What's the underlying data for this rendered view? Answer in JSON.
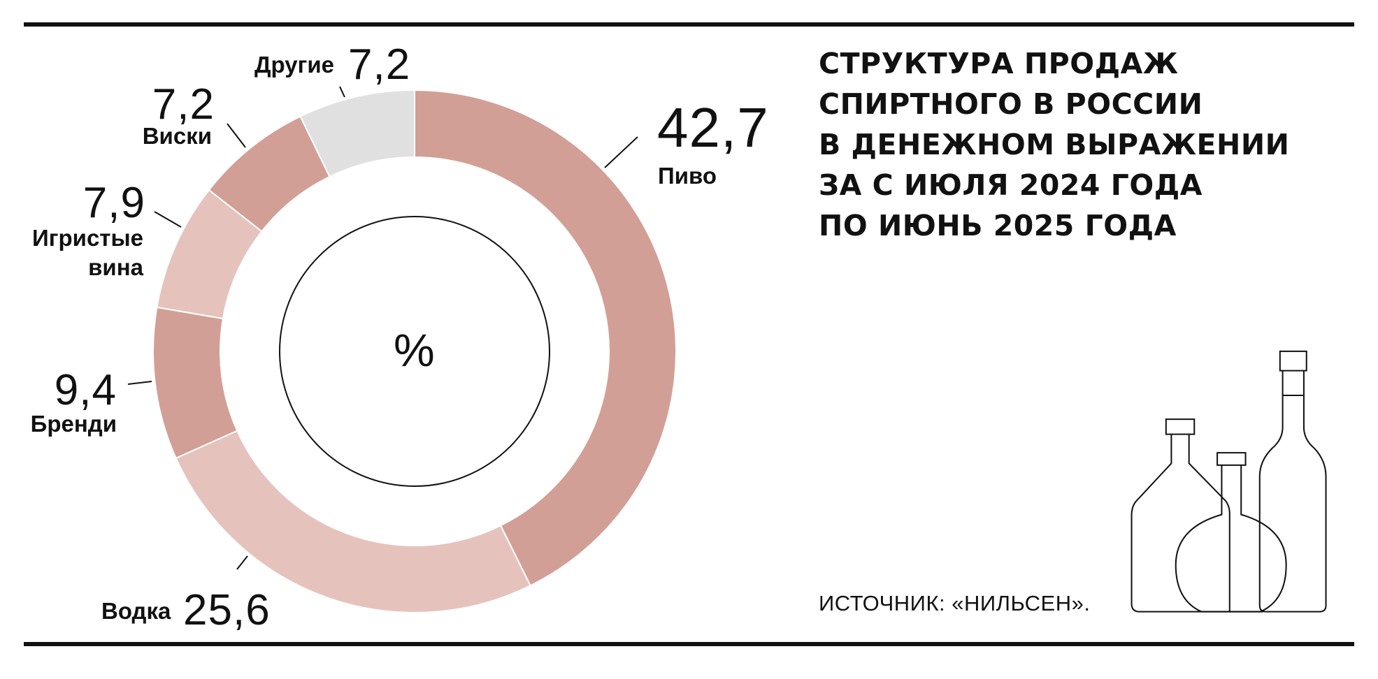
{
  "chart_data": {
    "type": "donut",
    "title": [
      "СТРУКТУРА ПРОДАЖ",
      "СПИРТНОГО В РОССИИ",
      "В ДЕНЕЖНОМ ВЫРАЖЕНИИ",
      "ЗА С ИЮЛЯ 2024 ГОДА",
      "ПО ИЮНЬ 2025 ГОДА"
    ],
    "categories": [
      "Пиво",
      "Водка",
      "Бренди",
      "Игристые вина",
      "Виски",
      "Другие"
    ],
    "values": [
      42.7,
      25.6,
      9.4,
      7.9,
      7.2,
      7.2
    ],
    "value_labels": [
      "42,7",
      "25,6",
      "9,4",
      "7,9",
      "7,2",
      "7,2"
    ],
    "colors": [
      "#d29f96",
      "#e5c3bc",
      "#d29f96",
      "#e5c3bc",
      "#d29f96",
      "#e0e0e0"
    ],
    "center_label": "%",
    "source": "ИСТОЧНИК: «НИЛЬСЕН»."
  }
}
